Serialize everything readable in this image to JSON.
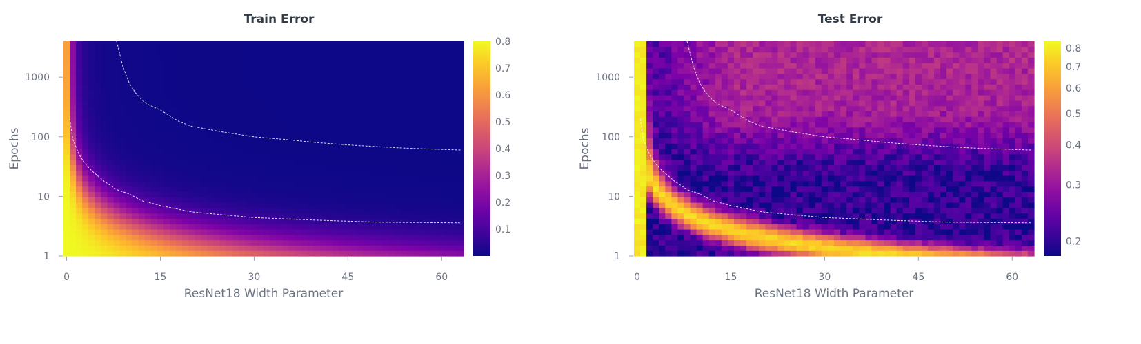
{
  "chart_data": [
    {
      "type": "heatmap",
      "title": "Train Error",
      "xlabel": "ResNet18 Width Parameter",
      "ylabel": "Epochs",
      "x_ticks": [
        "0",
        "15",
        "30",
        "45",
        "60"
      ],
      "x_tick_values": [
        0,
        15,
        30,
        45,
        60
      ],
      "xlim": [
        -0.5,
        63.5
      ],
      "y_scale": "log",
      "y_ticks": [
        "1",
        "10",
        "100",
        "1000"
      ],
      "y_tick_values": [
        1,
        10,
        100,
        1000
      ],
      "ylim": [
        1,
        4000
      ],
      "colorbar_ticks": [
        "0.1",
        "0.2",
        "0.3",
        "0.4",
        "0.5",
        "0.6",
        "0.7",
        "0.8"
      ],
      "colorbar_values": [
        0.1,
        0.2,
        0.3,
        0.4,
        0.5,
        0.6,
        0.7,
        0.8
      ],
      "colorbar_scale": "linear",
      "crange": [
        0.0,
        0.8
      ],
      "colormap": "plasma",
      "contours": [
        {
          "x": [
            0.5,
            1,
            2,
            3,
            4,
            6,
            8,
            10,
            12,
            15,
            20,
            30,
            40,
            50,
            63
          ],
          "y": [
            200,
            90,
            50,
            35,
            27,
            18,
            13,
            11,
            8.5,
            7,
            5.5,
            4.4,
            4.0,
            3.7,
            3.6
          ]
        },
        {
          "x": [
            8,
            9,
            10,
            11,
            12,
            13,
            15,
            18,
            20,
            25,
            30,
            35,
            40,
            45,
            50,
            55,
            63
          ],
          "y": [
            4000,
            1500,
            800,
            550,
            420,
            350,
            280,
            180,
            150,
            120,
            100,
            90,
            80,
            73,
            68,
            64,
            60
          ]
        }
      ]
    },
    {
      "type": "heatmap",
      "title": "Test Error",
      "xlabel": "ResNet18 Width Parameter",
      "ylabel": "Epochs",
      "x_ticks": [
        "0",
        "15",
        "30",
        "45",
        "60"
      ],
      "x_tick_values": [
        0,
        15,
        30,
        45,
        60
      ],
      "xlim": [
        -0.5,
        63.5
      ],
      "y_scale": "log",
      "y_ticks": [
        "1",
        "10",
        "100",
        "1000"
      ],
      "y_tick_values": [
        1,
        10,
        100,
        1000
      ],
      "ylim": [
        1,
        4000
      ],
      "colorbar_ticks": [
        "0.2",
        "0.3",
        "0.4",
        "0.5",
        "0.6",
        "0.7",
        "0.8"
      ],
      "colorbar_values": [
        0.2,
        0.3,
        0.4,
        0.5,
        0.6,
        0.7,
        0.8
      ],
      "colorbar_scale": "log",
      "crange": [
        0.18,
        0.84
      ],
      "colormap": "plasma",
      "contours": [
        {
          "x": [
            0.5,
            1,
            2,
            3,
            4,
            6,
            8,
            10,
            12,
            15,
            20,
            30,
            40,
            50,
            63
          ],
          "y": [
            200,
            90,
            50,
            35,
            27,
            18,
            13,
            11,
            8.5,
            7,
            5.5,
            4.4,
            4.0,
            3.7,
            3.6
          ]
        },
        {
          "x": [
            8,
            9,
            10,
            11,
            12,
            13,
            15,
            18,
            20,
            25,
            30,
            35,
            40,
            45,
            50,
            55,
            63
          ],
          "y": [
            4000,
            1500,
            800,
            550,
            420,
            350,
            280,
            180,
            150,
            120,
            100,
            90,
            80,
            73,
            68,
            64,
            60
          ]
        }
      ]
    }
  ]
}
